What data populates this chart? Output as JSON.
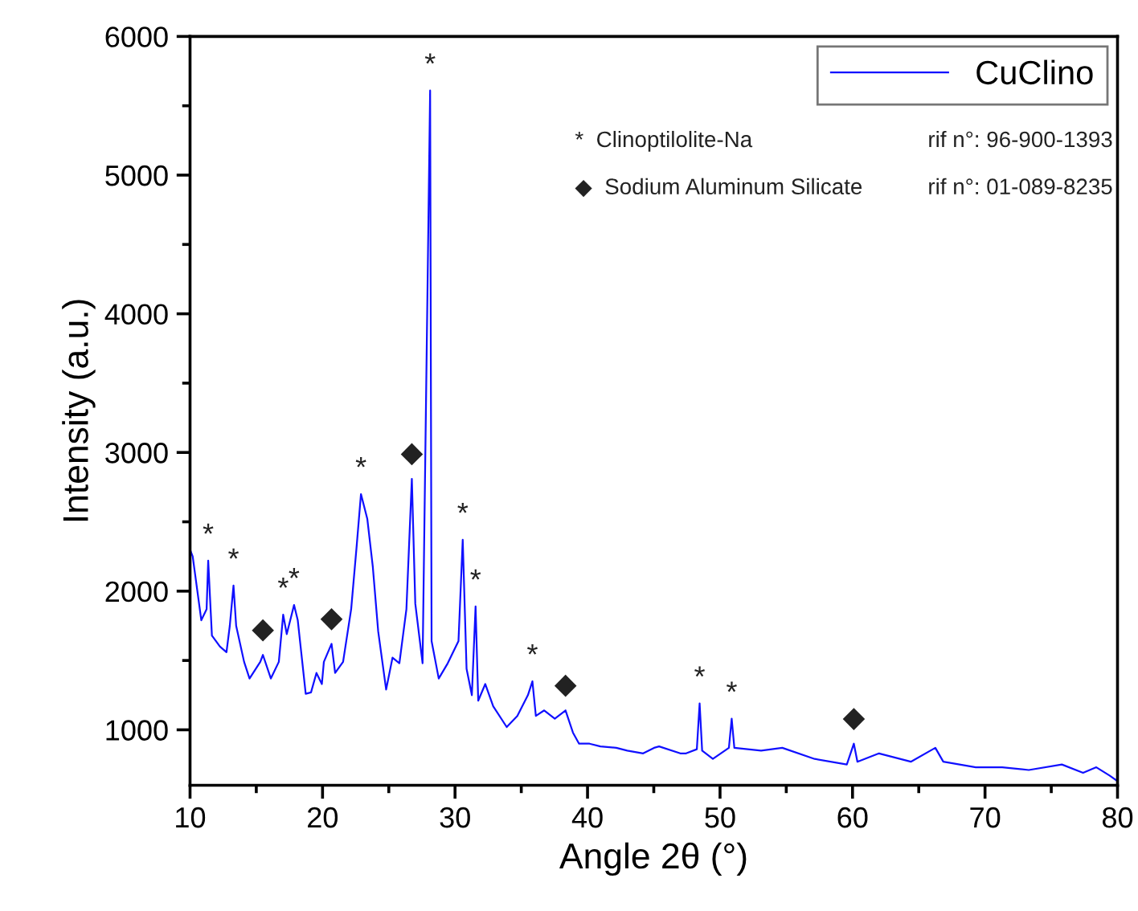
{
  "chart_data": {
    "type": "line",
    "xlabel": "Angle 2θ (°)",
    "ylabel": "Intensity (a.u.)",
    "xlim": [
      10,
      80
    ],
    "ylim": [
      600,
      6000
    ],
    "xticks": [
      10,
      {
        "value": 15,
        "label": null
      },
      20,
      {
        "value": 25,
        "label": null
      },
      30,
      {
        "value": 35,
        "label": null
      },
      40,
      {
        "value": 45,
        "label": null
      },
      50,
      {
        "value": 55,
        "label": null
      },
      60,
      {
        "value": 65,
        "label": null
      },
      70,
      {
        "value": 75,
        "label": null
      },
      80
    ],
    "yticks": [
      {
        "value": 1500,
        "label": null
      },
      1000,
      2000,
      {
        "value": 2500,
        "label": null
      },
      3000,
      {
        "value": 3500,
        "label": null
      },
      4000,
      {
        "value": 4500,
        "label": null
      },
      5000,
      {
        "value": 5500,
        "label": null
      },
      6000
    ],
    "legend": "top right",
    "grid": false,
    "marker": "none",
    "line_style": "solid",
    "series": [
      {
        "name": "CuClino",
        "color": "#1010ff",
        "x": [
          10.0,
          10.2,
          10.85,
          11.25,
          11.37,
          11.65,
          12.26,
          12.75,
          13.0,
          13.28,
          13.48,
          14.08,
          14.49,
          15.3,
          15.5,
          16.1,
          16.7,
          17.03,
          17.3,
          17.85,
          18.13,
          18.73,
          19.13,
          19.54,
          19.95,
          20.1,
          20.68,
          20.95,
          21.55,
          22.16,
          22.58,
          22.9,
          23.38,
          23.79,
          24.2,
          24.8,
          25.28,
          25.8,
          26.33,
          26.74,
          27.0,
          27.55,
          28.12,
          28.23,
          28.77,
          29.45,
          30.26,
          30.58,
          30.87,
          31.27,
          31.55,
          31.75,
          32.28,
          32.88,
          33.9,
          34.7,
          35.5,
          35.84,
          36.1,
          36.73,
          37.53,
          38.34,
          38.9,
          39.36,
          40.15,
          40.97,
          42.17,
          43.0,
          44.2,
          45.02,
          45.4,
          47.0,
          47.44,
          48.25,
          48.46,
          48.65,
          49.46,
          50.67,
          50.88,
          51.08,
          53.1,
          54.7,
          57.14,
          59.57,
          60.1,
          60.37,
          62.0,
          64.4,
          66.25,
          66.85,
          69.3,
          71.3,
          73.3,
          75.8,
          77.4,
          78.4,
          79.4,
          80.0
        ],
        "values": [
          2300,
          2250,
          1790,
          1870,
          2220,
          1680,
          1600,
          1560,
          1750,
          2040,
          1750,
          1490,
          1370,
          1490,
          1540,
          1370,
          1490,
          1830,
          1690,
          1900,
          1790,
          1260,
          1270,
          1410,
          1330,
          1490,
          1620,
          1410,
          1490,
          1870,
          2330,
          2700,
          2520,
          2180,
          1710,
          1290,
          1520,
          1480,
          1870,
          2810,
          1910,
          1480,
          5610,
          1640,
          1370,
          1480,
          1640,
          2370,
          1440,
          1250,
          1890,
          1210,
          1330,
          1170,
          1020,
          1100,
          1250,
          1350,
          1100,
          1140,
          1080,
          1140,
          980,
          900,
          900,
          880,
          870,
          850,
          830,
          870,
          880,
          830,
          830,
          860,
          1190,
          850,
          790,
          870,
          1080,
          870,
          850,
          870,
          790,
          750,
          900,
          770,
          830,
          770,
          870,
          770,
          730,
          730,
          710,
          750,
          690,
          730,
          670,
          630
        ]
      }
    ],
    "annotations": [
      "*  Clinoptilolite-Na",
      "rif n°: 96-900-1393",
      "◆  Sodium Aluminum Silicate",
      "rif n°: 01-089-8235",
      {
        "text": "*",
        "x": 11.37,
        "y": 2220
      },
      {
        "text": "*",
        "x": 13.28,
        "y": 2040
      },
      {
        "text": "◆",
        "x": 15.5,
        "y": 1540
      },
      {
        "text": "*",
        "x": 17.03,
        "y": 1830
      },
      {
        "text": "*",
        "x": 17.85,
        "y": 1900
      },
      {
        "text": "◆",
        "x": 20.68,
        "y": 1620
      },
      {
        "text": "*",
        "x": 22.9,
        "y": 2700
      },
      {
        "text": "◆",
        "x": 26.74,
        "y": 2810
      },
      {
        "text": "*",
        "x": 28.12,
        "y": 5610
      },
      {
        "text": "*",
        "x": 30.58,
        "y": 2370
      },
      {
        "text": "*",
        "x": 31.55,
        "y": 1890
      },
      {
        "text": "*",
        "x": 35.84,
        "y": 1350
      },
      {
        "text": "◆",
        "x": 38.34,
        "y": 1140
      },
      {
        "text": "*",
        "x": 48.46,
        "y": 1190
      },
      {
        "text": "*",
        "x": 50.88,
        "y": 1080
      },
      {
        "text": "◆",
        "x": 60.1,
        "y": 900
      }
    ]
  }
}
